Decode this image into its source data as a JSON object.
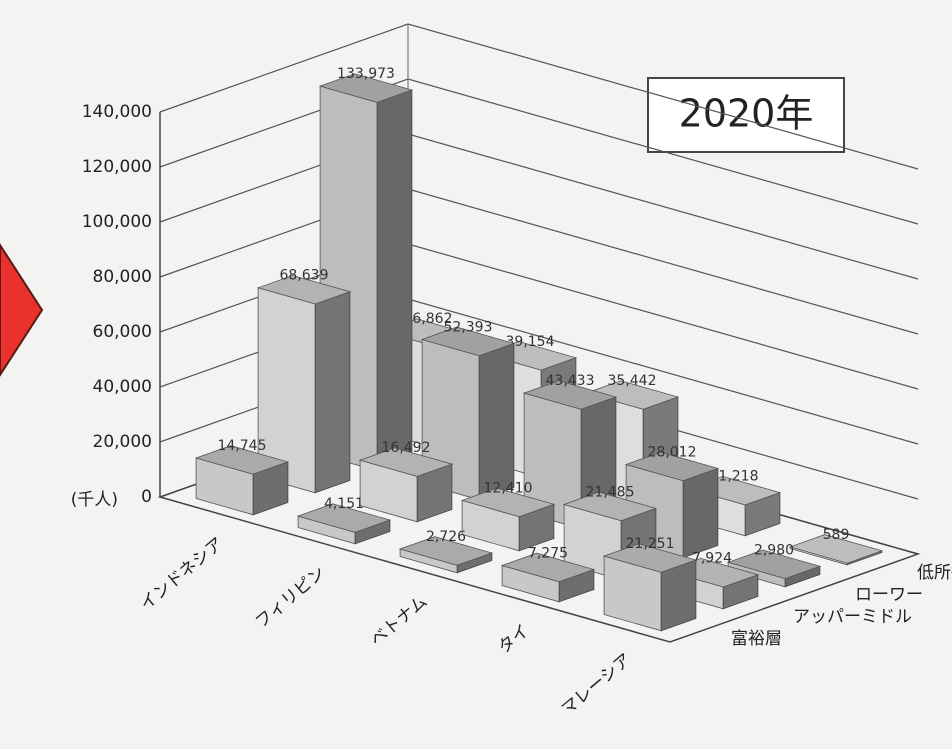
{
  "chart_data": {
    "type": "bar3d",
    "title": "2020年",
    "y_unit": "(千人)",
    "categories": [
      "インドネシア",
      "フィリピン",
      "ベトナム",
      "タイ",
      "マレーシア"
    ],
    "series": [
      {
        "name": "富裕層",
        "color": "#c8c8c8",
        "values": [
          14745,
          4151,
          2726,
          7275,
          21251
        ],
        "value_labels": [
          "14,745",
          "4,151",
          "2,726",
          "7,275",
          "21,251"
        ]
      },
      {
        "name": "アッパーミドル",
        "color": "#d2d2d2",
        "values": [
          68639,
          16492,
          12410,
          21485,
          7924
        ],
        "value_labels": [
          "68,639",
          "16,492",
          "12,410",
          "21,485",
          "7,924"
        ]
      },
      {
        "name": "ローワー",
        "color": "#bdbdbd",
        "values": [
          133973,
          52393,
          43433,
          28012,
          2980
        ],
        "value_labels": [
          "133,973",
          "52,393",
          "43,433",
          "28,012",
          "2,980"
        ]
      },
      {
        "name": "低所得",
        "color": "#dedede",
        "values": [
          36862,
          39154,
          35442,
          11218,
          589
        ],
        "value_labels": [
          "36,862",
          "39,154",
          "35,442",
          "11,218",
          "589"
        ]
      }
    ],
    "ylim": [
      0,
      140000
    ],
    "yticks": [
      0,
      {
        "value": 20000,
        "label": "20,000"
      },
      {
        "value": 40000,
        "label": "40,000"
      },
      {
        "value": 60000,
        "label": "60,000"
      },
      {
        "value": 80000,
        "label": "80,000"
      },
      {
        "value": 100000,
        "label": "100,000"
      },
      {
        "value": 120000,
        "label": "120,000"
      },
      {
        "value": 140000,
        "label": "140,000"
      }
    ],
    "grid": true
  }
}
